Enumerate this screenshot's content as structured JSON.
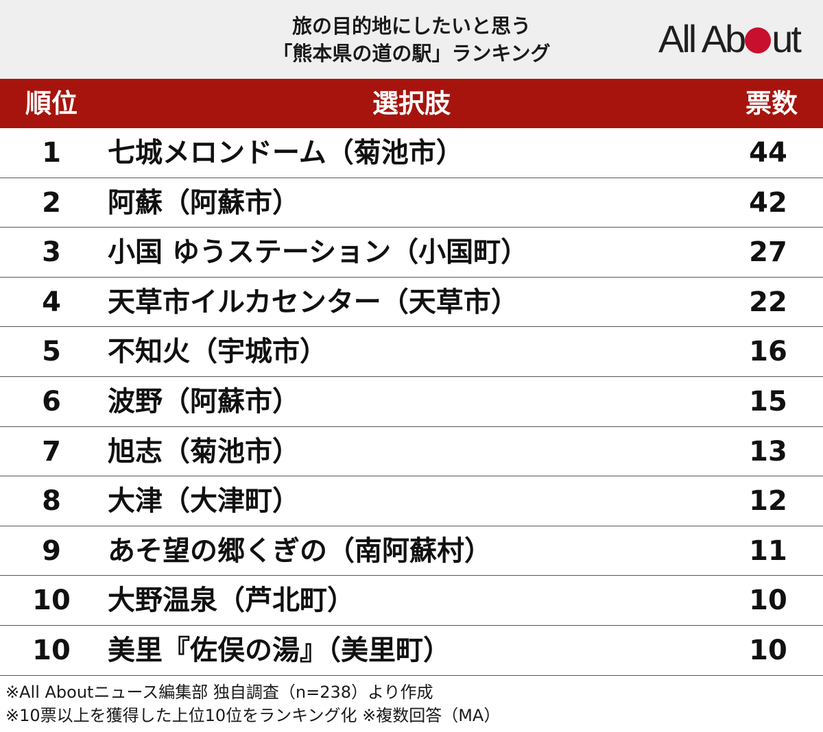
{
  "title": {
    "line1": "旅の目的地にしたいと思う",
    "line2": "「熊本県の道の駅」ランキング"
  },
  "logo": {
    "left": "All Ab",
    "right": "ut"
  },
  "headers": {
    "rank": "順位",
    "choice": "選択肢",
    "votes": "票数"
  },
  "chart_data": {
    "type": "table",
    "title": "旅の目的地にしたいと思う「熊本県の道の駅」ランキング",
    "columns": [
      "順位",
      "選択肢",
      "票数"
    ],
    "rows": [
      {
        "rank": "1",
        "name": "七城メロンドーム（菊池市）",
        "votes": "44"
      },
      {
        "rank": "2",
        "name": "阿蘇（阿蘇市）",
        "votes": "42"
      },
      {
        "rank": "3",
        "name": "小国 ゆうステーション（小国町）",
        "votes": "27"
      },
      {
        "rank": "4",
        "name": "天草市イルカセンター（天草市）",
        "votes": "22"
      },
      {
        "rank": "5",
        "name": "不知火（宇城市）",
        "votes": "16"
      },
      {
        "rank": "6",
        "name": "波野（阿蘇市）",
        "votes": "15"
      },
      {
        "rank": "7",
        "name": "旭志（菊池市）",
        "votes": "13"
      },
      {
        "rank": "8",
        "name": "大津（大津町）",
        "votes": "12"
      },
      {
        "rank": "9",
        "name": "あそ望の郷くぎの（南阿蘇村）",
        "votes": "11"
      },
      {
        "rank": "10",
        "name": "大野温泉（芦北町）",
        "votes": "10"
      },
      {
        "rank": "10",
        "name": "美里『佐俣の湯』（美里町）",
        "votes": "10"
      }
    ]
  },
  "notes": {
    "line1": "※All Aboutニュース編集部 独自調査（n=238）より作成",
    "line2": "※10票以上を獲得した上位10位をランキング化 ※複数回答（MA）"
  },
  "colors": {
    "header_bg": "#a6140d",
    "logo_dot": "#c8102e",
    "title_bg": "#efefef"
  }
}
